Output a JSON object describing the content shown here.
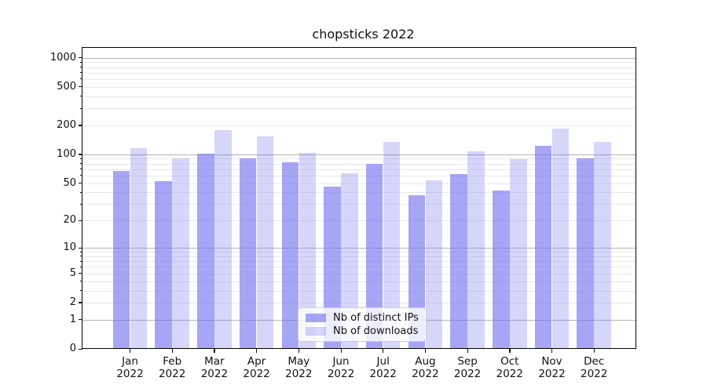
{
  "title": "chopsticks 2022",
  "chart_data": {
    "type": "bar",
    "categories": [
      "Jan 2022",
      "Feb 2022",
      "Mar 2022",
      "Apr 2022",
      "May 2022",
      "Jun 2022",
      "Jul 2022",
      "Aug 2022",
      "Sep 2022",
      "Oct 2022",
      "Nov 2022",
      "Dec 2022"
    ],
    "months": [
      "Jan",
      "Feb",
      "Mar",
      "Apr",
      "May",
      "Jun",
      "Jul",
      "Aug",
      "Sep",
      "Oct",
      "Nov",
      "Dec"
    ],
    "year": "2022",
    "series": [
      {
        "name": "Nb of distinct IPs",
        "color": "rgba(119,119,238,0.65)",
        "values": [
          67,
          53,
          101,
          91,
          83,
          46,
          80,
          37,
          62,
          42,
          123,
          91
        ]
      },
      {
        "name": "Nb of downloads",
        "color": "rgba(119,119,238,0.30)",
        "values": [
          115,
          90,
          180,
          154,
          104,
          63,
          135,
          54,
          108,
          89,
          185,
          135
        ]
      }
    ],
    "yscale": "log1p",
    "ylim": [
      0,
      1262
    ],
    "yticks": [
      0,
      1,
      2,
      5,
      10,
      20,
      50,
      100,
      200,
      500,
      1000
    ],
    "major_grid": [
      1,
      10,
      100,
      1000
    ],
    "grid": true,
    "legend_position": "lower center",
    "colors": {
      "bar_base": "#7777ee",
      "grid_major": "#b3b3b3",
      "grid_minor": "#e8e8ec",
      "axis": "#000000"
    }
  }
}
